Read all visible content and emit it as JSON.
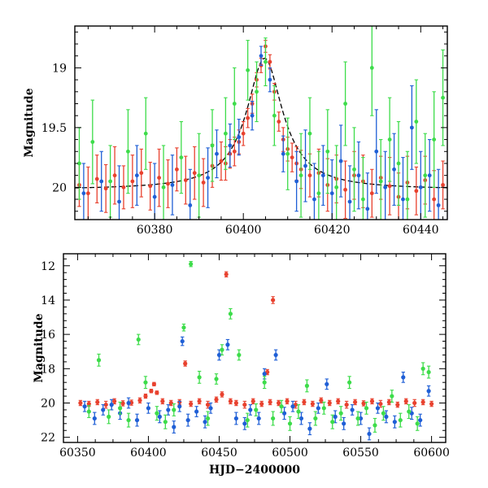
{
  "chart_data": [
    {
      "type": "scatter",
      "panel": "top",
      "title": "",
      "xlabel": "",
      "ylabel": "Magnitude",
      "xlim": [
        60362,
        60446
      ],
      "ylim": [
        20.27,
        18.65
      ],
      "y_inverted": true,
      "x_ticks": [
        60380,
        60400,
        60420,
        60440
      ],
      "x_tick_labels": [
        "60380",
        "60400",
        "60420",
        "60440"
      ],
      "y_ticks": [
        19,
        19.5,
        20
      ],
      "y_tick_labels": [
        "19",
        "19.5",
        "20"
      ],
      "model_curve": {
        "color": "#000000",
        "style": "dashed",
        "t0": 60404.8,
        "peak_mag": 18.92,
        "baseline_mag": 20.02,
        "tE": 9.5
      },
      "series": [
        {
          "color": "#e8412e",
          "x": [
            60363,
            60365,
            60367,
            60369,
            60371,
            60373,
            60375,
            60377,
            60379,
            60381,
            60383,
            60385,
            60387,
            60389,
            60391,
            60393,
            60395,
            60396,
            60397,
            60398,
            60399,
            60400,
            60401,
            60402,
            60403,
            60404,
            60405,
            60406,
            60407,
            60408,
            60409,
            60410,
            60411,
            60412,
            60413,
            60415,
            60417,
            60419,
            60421,
            60423,
            60425,
            60427,
            60429,
            60431,
            60433,
            60435,
            60437,
            60439,
            60441,
            60443,
            60445
          ],
          "y": [
            19.98,
            20.05,
            19.93,
            20.01,
            19.9,
            20.0,
            19.95,
            19.88,
            19.99,
            19.92,
            19.97,
            19.85,
            19.94,
            19.88,
            19.96,
            19.82,
            19.78,
            19.8,
            19.72,
            19.7,
            19.62,
            19.55,
            19.42,
            19.3,
            19.1,
            18.98,
            18.82,
            18.95,
            19.2,
            19.45,
            19.6,
            19.68,
            19.75,
            19.8,
            19.85,
            19.9,
            19.88,
            19.98,
            19.93,
            20.02,
            19.9,
            19.95,
            20.05,
            19.92,
            19.99,
            20.08,
            19.96,
            20.03,
            19.94,
            20.1,
            19.98
          ],
          "err": [
            0.18,
            0.22,
            0.2,
            0.2,
            0.24,
            0.18,
            0.22,
            0.2,
            0.2,
            0.24,
            0.2,
            0.18,
            0.2,
            0.22,
            0.2,
            0.18,
            0.16,
            0.14,
            0.12,
            0.12,
            0.1,
            0.1,
            0.08,
            0.08,
            0.06,
            0.06,
            0.05,
            0.06,
            0.07,
            0.08,
            0.1,
            0.1,
            0.12,
            0.14,
            0.16,
            0.18,
            0.2,
            0.22,
            0.2,
            0.24,
            0.2,
            0.22,
            0.2,
            0.18,
            0.24,
            0.2,
            0.22,
            0.2,
            0.2,
            0.24,
            0.2
          ]
        },
        {
          "color": "#1f5fd6",
          "x": [
            60364,
            60368,
            60372,
            60376,
            60380,
            60384,
            60388,
            60392,
            60394,
            60397,
            60399,
            60402,
            60404,
            60406,
            60409,
            60412,
            60414,
            60416,
            60418,
            60420,
            60422,
            60424,
            60426,
            60428,
            60430,
            60432,
            60434,
            60436,
            60438,
            60440,
            60442,
            60444
          ],
          "y": [
            20.05,
            19.95,
            20.12,
            19.9,
            20.08,
            19.98,
            20.15,
            19.92,
            19.72,
            19.65,
            19.58,
            19.4,
            18.9,
            19.1,
            19.72,
            19.95,
            19.82,
            20.1,
            19.9,
            20.05,
            19.78,
            20.12,
            19.9,
            20.18,
            19.7,
            20.0,
            19.85,
            20.1,
            19.5,
            20.0,
            19.9,
            20.15
          ],
          "err": [
            0.25,
            0.25,
            0.3,
            0.25,
            0.28,
            0.25,
            0.3,
            0.25,
            0.2,
            0.18,
            0.15,
            0.12,
            0.08,
            0.1,
            0.15,
            0.25,
            0.3,
            0.3,
            0.25,
            0.28,
            0.3,
            0.3,
            0.28,
            0.3,
            0.35,
            0.3,
            0.3,
            0.35,
            0.35,
            0.3,
            0.3,
            0.3
          ]
        },
        {
          "color": "#3ddc4a",
          "x": [
            60363,
            60366,
            60370,
            60374,
            60378,
            60382,
            60386,
            60390,
            60393,
            60396,
            60398,
            60401,
            60403,
            60405,
            60407,
            60410,
            60413,
            60415,
            60417,
            60419,
            60421,
            60423,
            60425,
            60427,
            60429,
            60431,
            60433,
            60435,
            60437,
            60439,
            60441,
            60443,
            60445
          ],
          "y": [
            19.8,
            19.62,
            19.95,
            19.7,
            19.55,
            20.0,
            19.75,
            19.9,
            19.65,
            19.55,
            19.3,
            19.02,
            19.2,
            18.95,
            19.4,
            19.72,
            19.9,
            19.55,
            20.05,
            19.7,
            20.0,
            19.3,
            19.85,
            20.1,
            19.0,
            19.95,
            19.6,
            19.8,
            20.1,
            19.45,
            19.9,
            19.6,
            19.25
          ],
          "err": [
            0.3,
            0.35,
            0.3,
            0.35,
            0.3,
            0.35,
            0.3,
            0.35,
            0.3,
            0.3,
            0.3,
            0.25,
            0.25,
            0.2,
            0.25,
            0.3,
            0.35,
            0.3,
            0.35,
            0.35,
            0.35,
            0.35,
            0.35,
            0.35,
            0.4,
            0.35,
            0.35,
            0.35,
            0.4,
            0.35,
            0.35,
            0.4,
            0.4
          ]
        }
      ]
    },
    {
      "type": "scatter",
      "panel": "bottom",
      "title": "",
      "xlabel": "HJD−2400000",
      "ylabel": "Magnitude",
      "xlim": [
        60340,
        60610
      ],
      "ylim": [
        22.3,
        11.3
      ],
      "y_inverted": true,
      "x_ticks": [
        60350,
        60400,
        60450,
        60500,
        60550,
        60600
      ],
      "x_tick_labels": [
        "60350",
        "60400",
        "60450",
        "60500",
        "60550",
        "60600"
      ],
      "y_ticks": [
        12,
        14,
        16,
        18,
        20,
        22
      ],
      "y_tick_labels": [
        "12",
        "14",
        "16",
        "18",
        "20",
        "22"
      ],
      "series": [
        {
          "color": "#e8412e",
          "x": [
            60352,
            60358,
            60364,
            60370,
            60376,
            60382,
            60388,
            60394,
            60398,
            60402,
            60404,
            60406,
            60410,
            60416,
            60422,
            60426,
            60430,
            60436,
            60442,
            60448,
            60452,
            60455,
            60458,
            60462,
            60468,
            60474,
            60480,
            60484,
            60486,
            60488,
            60492,
            60498,
            60504,
            60510,
            60516,
            60522,
            60528,
            60534,
            60540,
            60546,
            60552,
            60558,
            60564,
            60570,
            60576,
            60582,
            60588,
            60594,
            60600
          ],
          "y": [
            20.0,
            20.05,
            19.95,
            20.1,
            19.9,
            20.02,
            19.98,
            19.85,
            19.6,
            19.3,
            18.9,
            19.4,
            19.9,
            20.0,
            19.95,
            17.7,
            20.05,
            19.9,
            20.1,
            19.8,
            19.5,
            12.5,
            19.9,
            20.0,
            20.1,
            19.9,
            20.05,
            18.2,
            19.95,
            14.0,
            20.0,
            19.9,
            20.1,
            19.95,
            20.05,
            19.85,
            20.0,
            19.9,
            20.1,
            19.95,
            20.02,
            19.9,
            20.05,
            19.95,
            20.1,
            19.9,
            20.0,
            19.95,
            20.05
          ],
          "err": [
            0.15,
            0.15,
            0.15,
            0.2,
            0.15,
            0.15,
            0.15,
            0.15,
            0.12,
            0.1,
            0.1,
            0.1,
            0.15,
            0.15,
            0.15,
            0.15,
            0.15,
            0.15,
            0.2,
            0.15,
            0.15,
            0.15,
            0.15,
            0.15,
            0.2,
            0.15,
            0.15,
            0.15,
            0.15,
            0.2,
            0.15,
            0.15,
            0.2,
            0.15,
            0.15,
            0.15,
            0.15,
            0.15,
            0.2,
            0.15,
            0.15,
            0.15,
            0.2,
            0.15,
            0.15,
            0.15,
            0.2,
            0.15,
            0.15
          ]
        },
        {
          "color": "#1f5fd6",
          "x": [
            60355,
            60362,
            60368,
            60374,
            60380,
            60386,
            60392,
            60400,
            60408,
            60414,
            60418,
            60422,
            60424,
            60428,
            60434,
            60440,
            60444,
            60450,
            60456,
            60462,
            60468,
            60472,
            60478,
            60482,
            60490,
            60496,
            60502,
            60508,
            60514,
            60520,
            60526,
            60532,
            60538,
            60544,
            60550,
            60556,
            60562,
            60568,
            60574,
            60580,
            60586,
            60592,
            60598
          ],
          "y": [
            20.2,
            20.9,
            20.4,
            20.1,
            20.6,
            20.0,
            21.0,
            20.3,
            20.8,
            20.4,
            21.4,
            20.2,
            16.4,
            21.0,
            20.5,
            21.1,
            20.3,
            17.2,
            16.6,
            20.9,
            21.2,
            20.4,
            20.9,
            18.3,
            17.2,
            20.6,
            20.2,
            20.9,
            21.5,
            20.3,
            18.9,
            20.8,
            21.2,
            20.4,
            20.9,
            21.8,
            20.3,
            20.8,
            21.1,
            18.5,
            20.6,
            21.0,
            19.3
          ],
          "err": [
            0.3,
            0.35,
            0.3,
            0.3,
            0.35,
            0.3,
            0.35,
            0.3,
            0.35,
            0.3,
            0.35,
            0.3,
            0.25,
            0.35,
            0.3,
            0.35,
            0.3,
            0.3,
            0.3,
            0.35,
            0.35,
            0.3,
            0.35,
            0.3,
            0.3,
            0.35,
            0.3,
            0.35,
            0.35,
            0.3,
            0.3,
            0.35,
            0.35,
            0.3,
            0.35,
            0.35,
            0.3,
            0.35,
            0.35,
            0.3,
            0.35,
            0.35,
            0.3
          ]
        },
        {
          "color": "#3ddc4a",
          "x": [
            60358,
            60365,
            60372,
            60380,
            60386,
            60393,
            60398,
            60406,
            60412,
            60418,
            60425,
            60430,
            60436,
            60442,
            60448,
            60452,
            60458,
            60464,
            60470,
            60476,
            60482,
            60488,
            60494,
            60500,
            60506,
            60512,
            60518,
            60524,
            60530,
            60536,
            60542,
            60548,
            60554,
            60560,
            60566,
            60572,
            60578,
            60584,
            60590,
            60594,
            60598
          ],
          "y": [
            20.5,
            17.5,
            20.8,
            20.3,
            21.0,
            16.3,
            18.8,
            20.6,
            21.1,
            20.4,
            15.6,
            11.9,
            18.5,
            20.9,
            18.6,
            16.9,
            14.8,
            17.2,
            21.0,
            20.4,
            18.8,
            20.9,
            20.2,
            21.2,
            20.5,
            19.0,
            20.9,
            20.3,
            21.1,
            20.6,
            18.8,
            20.9,
            20.3,
            21.3,
            20.6,
            19.6,
            21.0,
            20.5,
            21.2,
            18.0,
            18.2
          ],
          "err": [
            0.35,
            0.35,
            0.4,
            0.35,
            0.4,
            0.3,
            0.35,
            0.4,
            0.4,
            0.35,
            0.2,
            0.15,
            0.35,
            0.4,
            0.3,
            0.3,
            0.3,
            0.3,
            0.4,
            0.35,
            0.35,
            0.4,
            0.35,
            0.4,
            0.4,
            0.35,
            0.4,
            0.35,
            0.4,
            0.4,
            0.35,
            0.4,
            0.35,
            0.4,
            0.4,
            0.35,
            0.4,
            0.4,
            0.4,
            0.35,
            0.35
          ]
        }
      ]
    }
  ]
}
